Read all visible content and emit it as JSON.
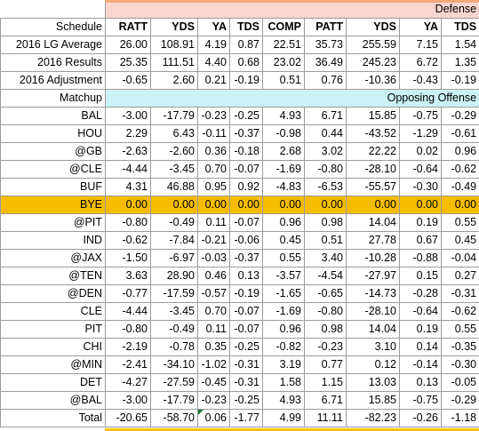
{
  "header": {
    "schedule_label": "Schedule",
    "defense_band": "Defense",
    "opposing_offense_band": "Opposing Offense",
    "matchup_label": "Matchup",
    "columns": [
      "RATT",
      "YDS",
      "YA",
      "TDS",
      "COMP",
      "PATT",
      "YDS",
      "YA",
      "TDS"
    ]
  },
  "summary_rows": [
    {
      "label": "2016 LG Average",
      "values": [
        "26.00",
        "108.91",
        "4.19",
        "0.87",
        "22.51",
        "35.73",
        "255.59",
        "7.15",
        "1.54"
      ]
    },
    {
      "label": "2016 Results",
      "values": [
        "25.35",
        "111.51",
        "4.40",
        "0.68",
        "23.02",
        "36.49",
        "245.23",
        "6.72",
        "1.35"
      ]
    },
    {
      "label": "2016 Adjustment",
      "values": [
        "-0.65",
        "2.60",
        "0.21",
        "-0.19",
        "0.51",
        "0.76",
        "-10.36",
        "-0.43",
        "-0.19"
      ]
    }
  ],
  "matchups": [
    {
      "label": "BAL",
      "values": [
        "-3.00",
        "-17.79",
        "-0.23",
        "-0.25",
        "4.93",
        "6.71",
        "15.85",
        "-0.75",
        "-0.29"
      ]
    },
    {
      "label": "HOU",
      "values": [
        "2.29",
        "6.43",
        "-0.11",
        "-0.37",
        "-0.98",
        "0.44",
        "-43.52",
        "-1.29",
        "-0.61"
      ]
    },
    {
      "label": "@GB",
      "values": [
        "-2.63",
        "-2.60",
        "0.36",
        "-0.18",
        "2.68",
        "3.02",
        "22.22",
        "0.02",
        "0.96"
      ]
    },
    {
      "label": "@CLE",
      "values": [
        "-4.44",
        "-3.45",
        "0.70",
        "-0.07",
        "-1.69",
        "-0.80",
        "-28.10",
        "-0.64",
        "-0.62"
      ]
    },
    {
      "label": "BUF",
      "values": [
        "4.31",
        "46.88",
        "0.95",
        "0.92",
        "-4.83",
        "-6.53",
        "-55.57",
        "-0.30",
        "-0.49"
      ]
    },
    {
      "label": "BYE",
      "values": [
        "0.00",
        "0.00",
        "0.00",
        "0.00",
        "0.00",
        "0.00",
        "0.00",
        "0.00",
        "0.00"
      ],
      "bye": true
    },
    {
      "label": "@PIT",
      "values": [
        "-0.80",
        "-0.49",
        "0.11",
        "-0.07",
        "0.96",
        "0.98",
        "14.04",
        "0.19",
        "0.55"
      ]
    },
    {
      "label": "IND",
      "values": [
        "-0.62",
        "-7.84",
        "-0.21",
        "-0.06",
        "0.45",
        "0.51",
        "27.78",
        "0.67",
        "0.45"
      ]
    },
    {
      "label": "@JAX",
      "values": [
        "-1.50",
        "-6.97",
        "-0.03",
        "-0.37",
        "0.55",
        "3.40",
        "-10.28",
        "-0.88",
        "-0.04"
      ]
    },
    {
      "label": "@TEN",
      "values": [
        "3.63",
        "28.90",
        "0.46",
        "0.13",
        "-3.57",
        "-4.54",
        "-27.97",
        "0.15",
        "0.27"
      ]
    },
    {
      "label": "@DEN",
      "values": [
        "-0.77",
        "-17.59",
        "-0.57",
        "-0.19",
        "-1.65",
        "-0.65",
        "-14.73",
        "-0.28",
        "-0.31"
      ]
    },
    {
      "label": "CLE",
      "values": [
        "-4.44",
        "-3.45",
        "0.70",
        "-0.07",
        "-1.69",
        "-0.80",
        "-28.10",
        "-0.64",
        "-0.62"
      ]
    },
    {
      "label": "PIT",
      "values": [
        "-0.80",
        "-0.49",
        "0.11",
        "-0.07",
        "0.96",
        "0.98",
        "14.04",
        "0.19",
        "0.55"
      ]
    },
    {
      "label": "CHI",
      "values": [
        "-2.19",
        "-0.78",
        "0.35",
        "-0.25",
        "-0.82",
        "-0.23",
        "3.10",
        "0.14",
        "-0.35"
      ]
    },
    {
      "label": "@MIN",
      "values": [
        "-2.41",
        "-34.10",
        "-1.02",
        "-0.31",
        "3.19",
        "0.77",
        "0.12",
        "-0.14",
        "-0.30"
      ]
    },
    {
      "label": "DET",
      "values": [
        "-4.27",
        "-27.59",
        "-0.45",
        "-0.31",
        "1.58",
        "1.15",
        "13.03",
        "0.13",
        "-0.05"
      ]
    },
    {
      "label": "@BAL",
      "values": [
        "-3.00",
        "-17.79",
        "-0.23",
        "-0.25",
        "4.93",
        "6.71",
        "15.85",
        "-0.75",
        "-0.29"
      ]
    }
  ],
  "total": {
    "label": "Total",
    "values": [
      "-20.65",
      "-58.70",
      "0.06",
      "-1.77",
      "4.99",
      "11.11",
      "-82.23",
      "-0.26",
      "-1.18"
    ]
  },
  "colors": {
    "defense_band": "#f7d6cf",
    "opposing_band": "#ccf1f6",
    "bye_row": "#f5bd00",
    "grid": "#9c9c9c"
  }
}
